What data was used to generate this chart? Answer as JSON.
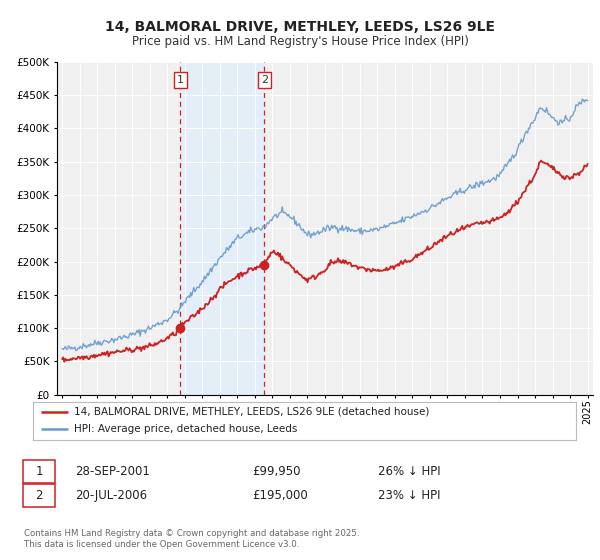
{
  "title": "14, BALMORAL DRIVE, METHLEY, LEEDS, LS26 9LE",
  "subtitle": "Price paid vs. HM Land Registry's House Price Index (HPI)",
  "background_color": "#ffffff",
  "plot_bg_color": "#f0f0f0",
  "grid_color": "#ffffff",
  "ylim": [
    0,
    500000
  ],
  "yticks": [
    0,
    50000,
    100000,
    150000,
    200000,
    250000,
    300000,
    350000,
    400000,
    450000,
    500000
  ],
  "hpi_color": "#6699cc",
  "price_color": "#cc2222",
  "purchase1_date": "28-SEP-2001",
  "purchase1_price": 99950,
  "purchase1_price_str": "£99,950",
  "purchase1_hpi_diff": "26% ↓ HPI",
  "purchase1_x": 2001.75,
  "purchase1_y": 99950,
  "purchase2_date": "20-JUL-2006",
  "purchase2_price": 195000,
  "purchase2_price_str": "£195,000",
  "purchase2_hpi_diff": "23% ↓ HPI",
  "purchase2_x": 2006.55,
  "purchase2_y": 195000,
  "legend_label_price": "14, BALMORAL DRIVE, METHLEY, LEEDS, LS26 9LE (detached house)",
  "legend_label_hpi": "HPI: Average price, detached house, Leeds",
  "footer_text": "Contains HM Land Registry data © Crown copyright and database right 2025.\nThis data is licensed under the Open Government Licence v3.0.",
  "vline1_x": 2001.75,
  "vline2_x": 2006.55,
  "shade_color": "#ddeeff",
  "xlim_left": 1994.7,
  "xlim_right": 2025.3
}
